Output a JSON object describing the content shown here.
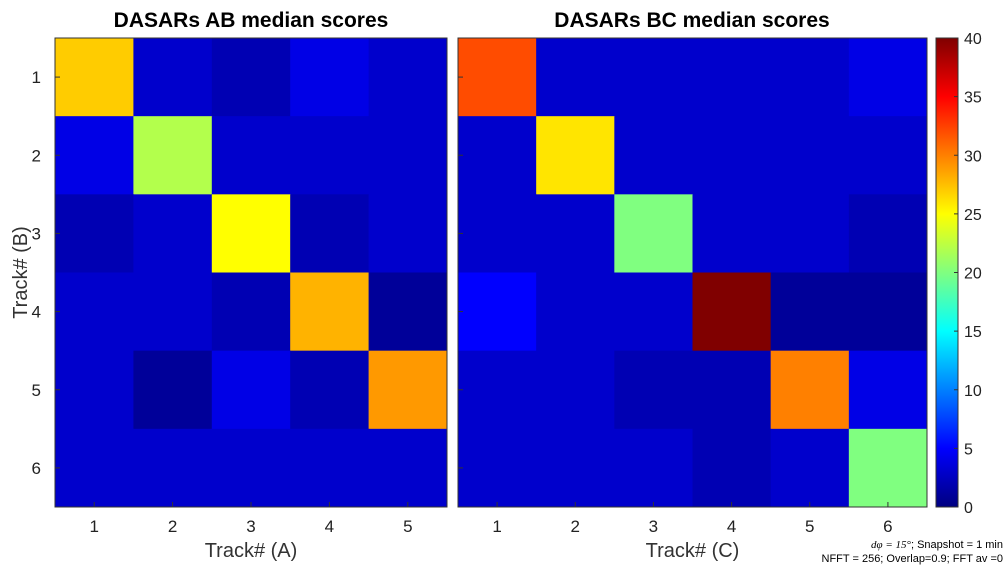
{
  "chart_data": [
    {
      "type": "heatmap",
      "title": "DASARs AB median scores",
      "xlabel": "Track# (A)",
      "ylabel": "Track# (B)",
      "x_categories": [
        "1",
        "2",
        "3",
        "4",
        "5"
      ],
      "y_categories": [
        "1",
        "2",
        "3",
        "4",
        "5",
        "6"
      ],
      "values": [
        [
          27,
          3,
          2,
          4,
          3
        ],
        [
          4,
          22,
          3,
          3,
          3
        ],
        [
          2,
          3,
          25,
          2,
          3
        ],
        [
          3,
          3,
          2,
          28,
          1
        ],
        [
          3,
          1,
          4,
          2,
          29
        ],
        [
          3,
          3,
          3,
          3,
          3
        ]
      ]
    },
    {
      "type": "heatmap",
      "title": "DASARs BC median scores",
      "xlabel": "Track# (C)",
      "ylabel": "",
      "x_categories": [
        "1",
        "2",
        "3",
        "4",
        "5",
        "6"
      ],
      "y_categories": [
        "1",
        "2",
        "3",
        "4",
        "5",
        "6"
      ],
      "values": [
        [
          32,
          3,
          3,
          3,
          3,
          4
        ],
        [
          3,
          26,
          3,
          3,
          3,
          3
        ],
        [
          3,
          3,
          20,
          3,
          3,
          2
        ],
        [
          5,
          3,
          3,
          40,
          1,
          1
        ],
        [
          3,
          3,
          2,
          2,
          30,
          4
        ],
        [
          3,
          3,
          3,
          2,
          3,
          20
        ]
      ]
    }
  ],
  "colorbar": {
    "colormap": "jet",
    "min": 0,
    "max": 40,
    "ticks": [
      "0",
      "5",
      "10",
      "15",
      "20",
      "25",
      "30",
      "35",
      "40"
    ]
  },
  "footnote": {
    "line1_symbol": "dφ = 15°",
    "line1_rest": "; Snapshot = 1 min",
    "line2": "NFFT = 256; Overlap=0.9; FFT av =0"
  }
}
